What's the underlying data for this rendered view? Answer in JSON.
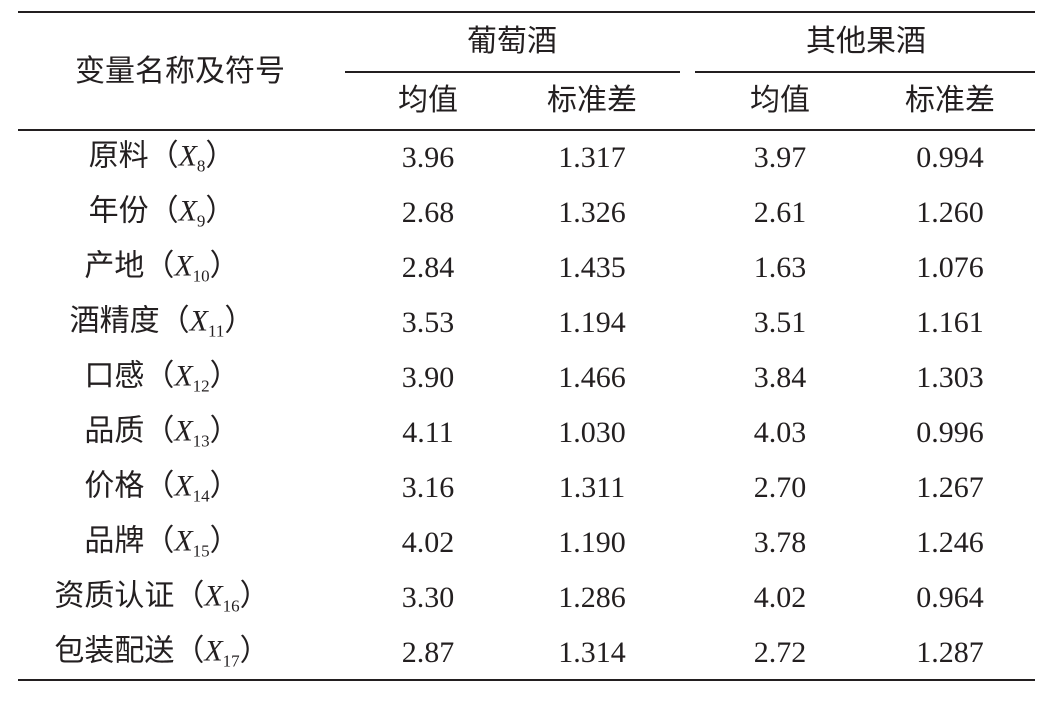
{
  "table": {
    "header": {
      "variable": "变量名称及符号",
      "groups": [
        {
          "name": "葡萄酒",
          "columns": [
            "均值",
            "标准差"
          ]
        },
        {
          "name": "其他果酒",
          "columns": [
            "均值",
            "标准差"
          ]
        }
      ]
    },
    "bracket_open": "（",
    "bracket_close": "）",
    "rows": [
      {
        "name": "原料",
        "symbol": "X",
        "subscript": "8",
        "values": [
          "3.96",
          "1.317",
          "3.97",
          "0.994"
        ]
      },
      {
        "name": "年份",
        "symbol": "X",
        "subscript": "9",
        "values": [
          "2.68",
          "1.326",
          "2.61",
          "1.260"
        ]
      },
      {
        "name": "产地",
        "symbol": "X",
        "subscript": "10",
        "values": [
          "2.84",
          "1.435",
          "1.63",
          "1.076"
        ]
      },
      {
        "name": "酒精度",
        "symbol": "X",
        "subscript": "11",
        "values": [
          "3.53",
          "1.194",
          "3.51",
          "1.161"
        ]
      },
      {
        "name": "口感",
        "symbol": "X",
        "subscript": "12",
        "values": [
          "3.90",
          "1.466",
          "3.84",
          "1.303"
        ]
      },
      {
        "name": "品质",
        "symbol": "X",
        "subscript": "13",
        "values": [
          "4.11",
          "1.030",
          "4.03",
          "0.996"
        ]
      },
      {
        "name": "价格",
        "symbol": "X",
        "subscript": "14",
        "values": [
          "3.16",
          "1.311",
          "2.70",
          "1.267"
        ]
      },
      {
        "name": "品牌",
        "symbol": "X",
        "subscript": "15",
        "values": [
          "4.02",
          "1.190",
          "3.78",
          "1.246"
        ]
      },
      {
        "name": "资质认证",
        "symbol": "X",
        "subscript": "16",
        "values": [
          "3.30",
          "1.286",
          "4.02",
          "0.964"
        ]
      },
      {
        "name": "包装配送",
        "symbol": "X",
        "subscript": "17",
        "values": [
          "2.87",
          "1.314",
          "2.72",
          "1.287"
        ]
      }
    ]
  }
}
